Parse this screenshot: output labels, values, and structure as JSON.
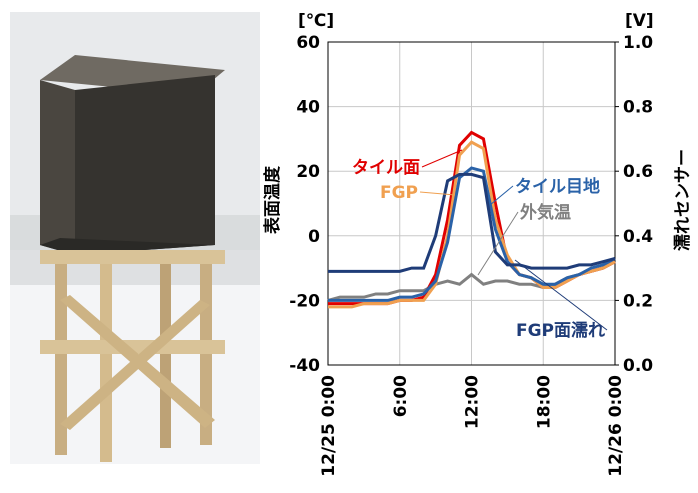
{
  "chart_data": {
    "type": "line",
    "y_label": "表面温度",
    "y2_label": "濡れセンサー",
    "y_unit": "[℃]",
    "y2_unit": "[V]",
    "x": [
      0,
      1,
      2,
      3,
      4,
      5,
      6,
      7,
      8,
      9,
      10,
      11,
      12,
      13,
      14,
      15,
      16,
      17,
      18,
      19,
      20,
      21,
      22,
      23,
      24
    ],
    "xlim": [
      0,
      24
    ],
    "xticks": [
      {
        "value": 0,
        "label": "12/25 0:00"
      },
      {
        "value": 6,
        "label": "6:00"
      },
      {
        "value": 12,
        "label": "12:00"
      },
      {
        "value": 18,
        "label": "18:00"
      },
      {
        "value": 24,
        "label": "12/26 0:00"
      }
    ],
    "ylim": [
      -40,
      60
    ],
    "yticks": [
      -40,
      -20,
      0,
      20,
      40,
      60
    ],
    "y2lim": [
      0,
      1
    ],
    "y2ticks": [
      {
        "value": 0,
        "label": "0.0"
      },
      0.2,
      0.4,
      0.6,
      0.8,
      {
        "value": 1,
        "label": "1.0"
      }
    ],
    "grid": true,
    "series": [
      {
        "name": "外気温",
        "color": "#808080",
        "values": [
          -20,
          -19,
          -19,
          -19,
          -18,
          -18,
          -17,
          -17,
          -17,
          -15,
          -14,
          -15,
          -12,
          -15,
          -14,
          -14,
          -15,
          -15,
          -16,
          -15,
          -13,
          -12,
          -11,
          -10,
          -8
        ]
      },
      {
        "name": "タイル面",
        "color": "#e00000",
        "values": [
          -21,
          -21,
          -21,
          -21,
          -21,
          -21,
          -20,
          -20,
          -19,
          -12,
          5,
          28,
          32,
          30,
          10,
          -8,
          -12,
          -13,
          -16,
          -16,
          -14,
          -12,
          -11,
          -10,
          -8
        ]
      },
      {
        "name": "FGP",
        "color": "#f0a050",
        "values": [
          -22,
          -22,
          -22,
          -21,
          -21,
          -21,
          -20,
          -20,
          -20,
          -15,
          0,
          25,
          29,
          27,
          5,
          -6,
          -12,
          -13,
          -16,
          -16,
          -14,
          -12,
          -11,
          -10,
          -8
        ]
      },
      {
        "name": "タイル目地",
        "color": "#2a62a8",
        "values": [
          -20,
          -20,
          -20,
          -20,
          -20,
          -20,
          -19,
          -19,
          -18,
          -14,
          -2,
          18,
          21,
          20,
          2,
          -8,
          -12,
          -13,
          -15,
          -15,
          -13,
          -12,
          -10,
          -9,
          -7
        ]
      },
      {
        "name": "FGP面濡れ",
        "color": "#1f3c78",
        "axis": "y2",
        "values": [
          0.29,
          0.29,
          0.29,
          0.29,
          0.29,
          0.29,
          0.29,
          0.3,
          0.3,
          0.4,
          0.57,
          0.59,
          0.59,
          0.58,
          0.35,
          0.31,
          0.31,
          0.3,
          0.3,
          0.3,
          0.3,
          0.31,
          0.31,
          0.32,
          0.33
        ]
      }
    ]
  }
}
